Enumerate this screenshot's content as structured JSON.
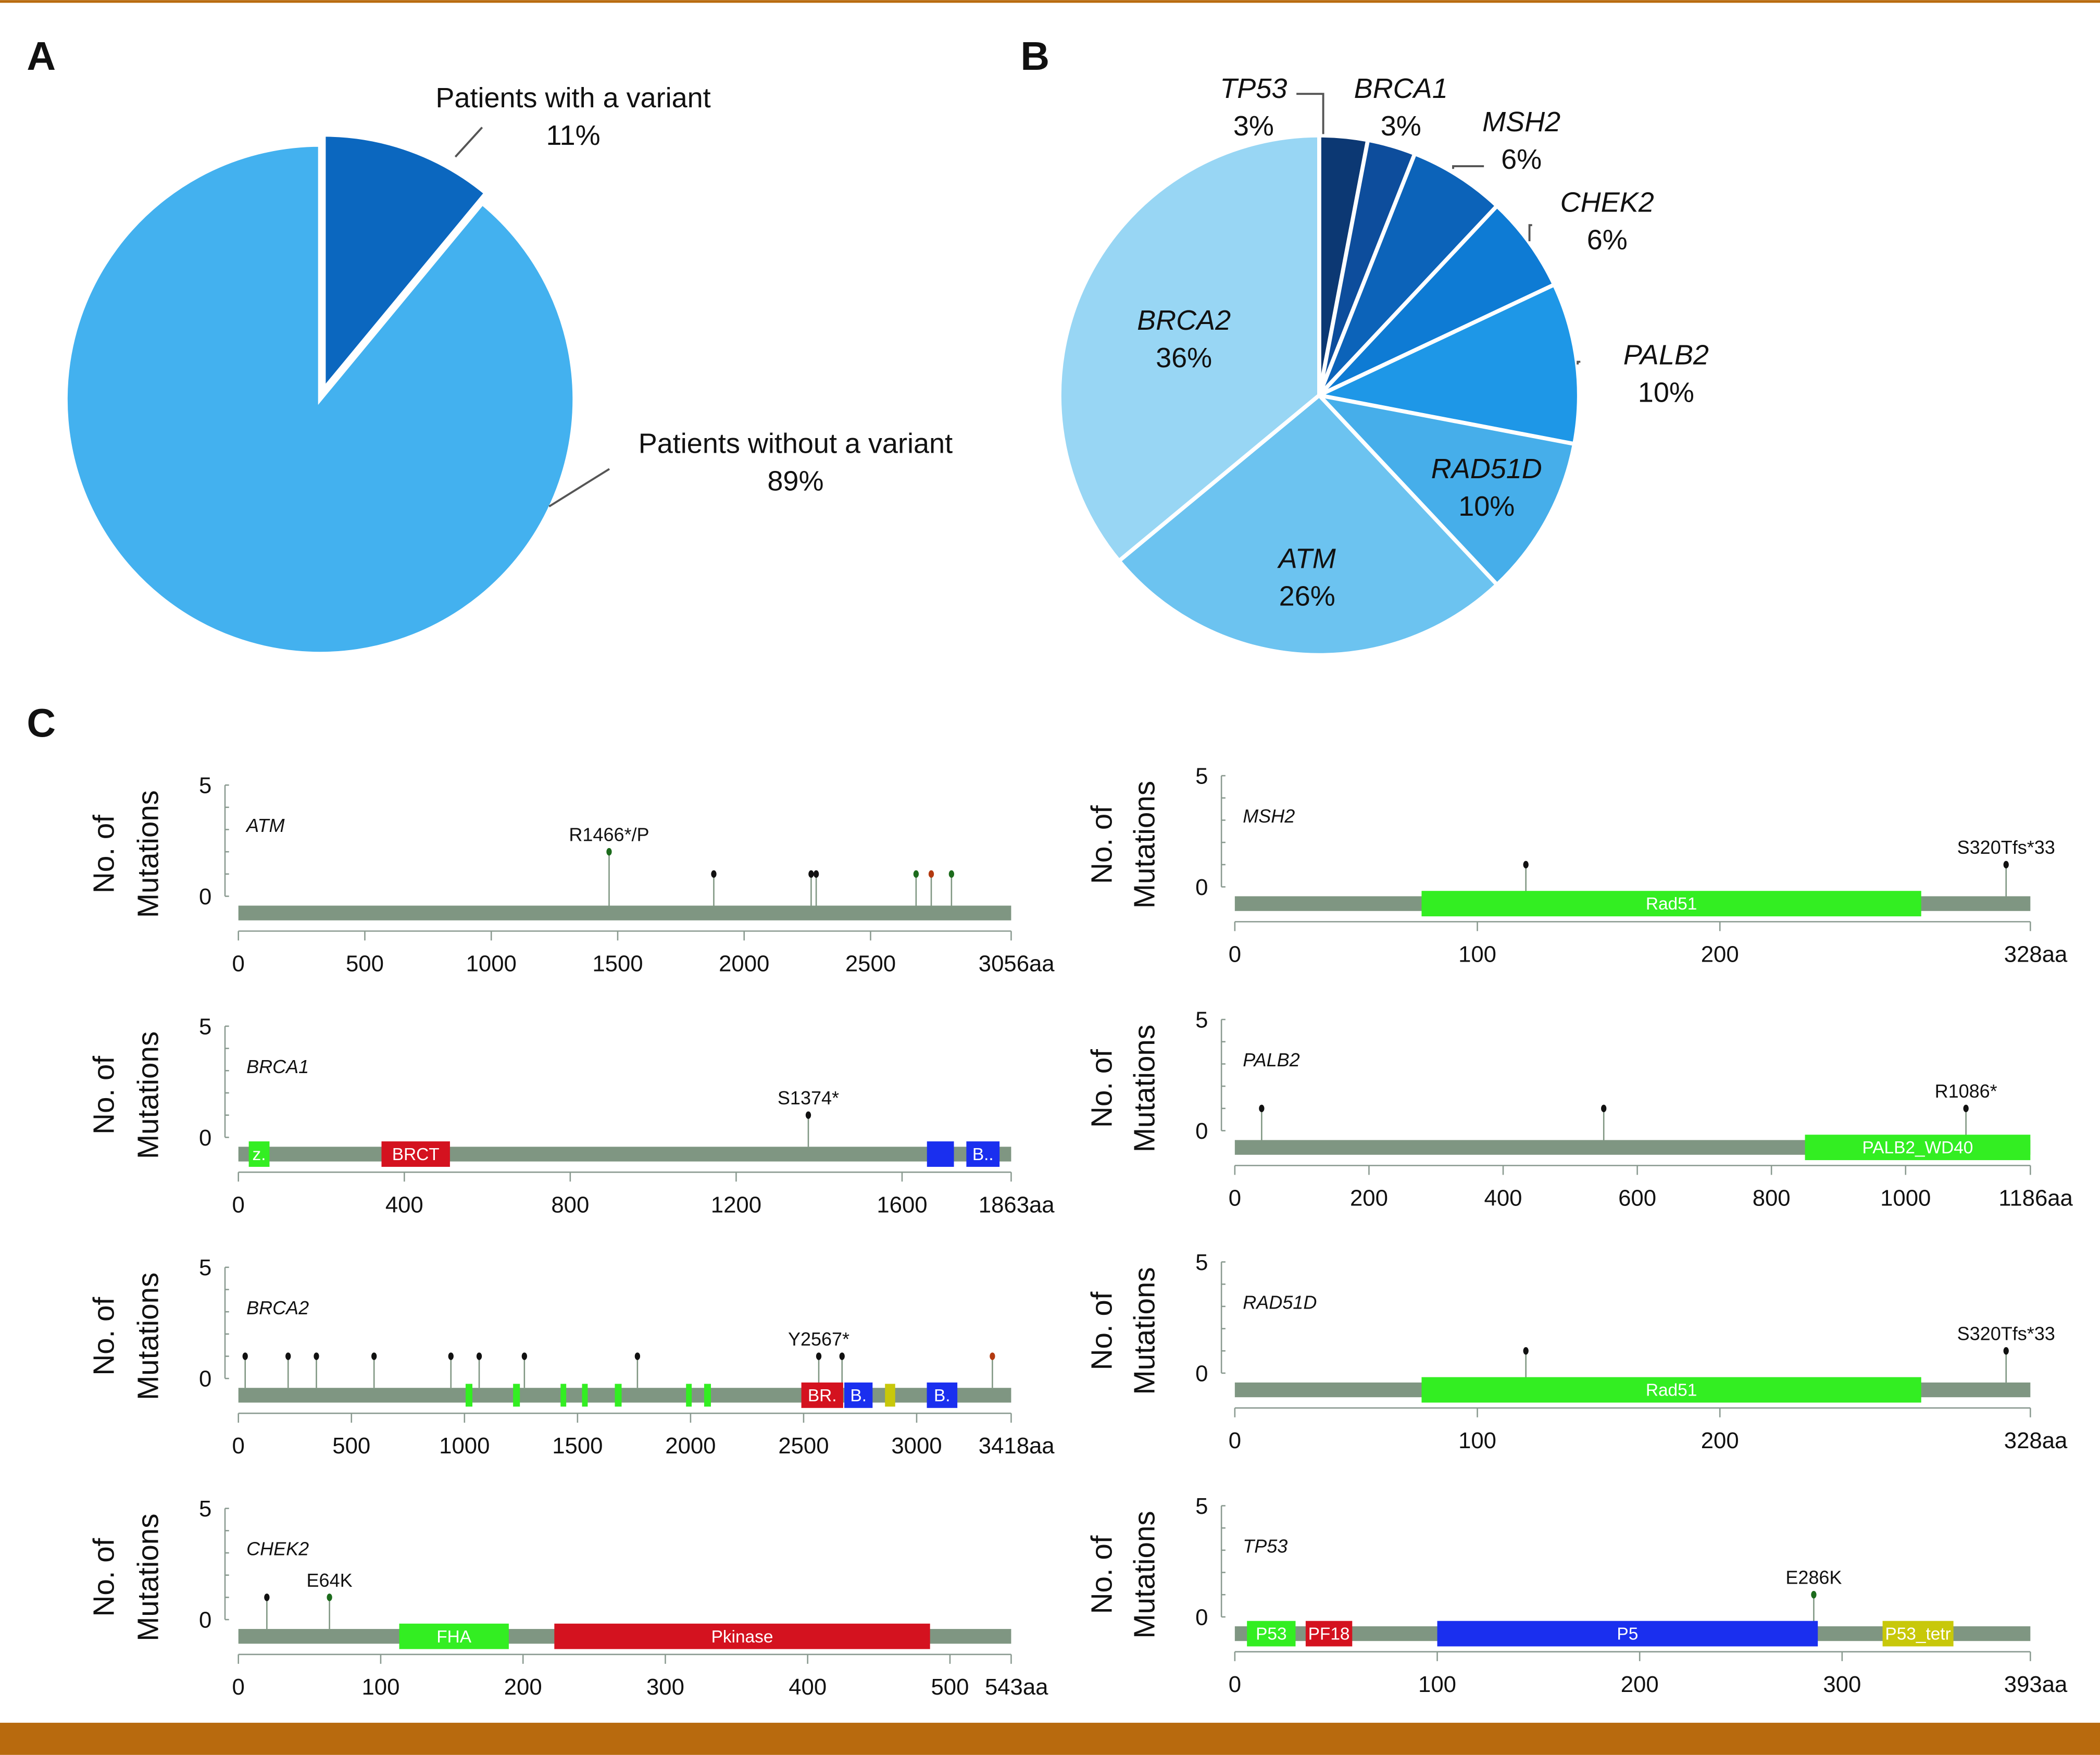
{
  "colors": {
    "frame": "#b86a0e",
    "backbone": "#7f9682",
    "stem": "#7f9682"
  },
  "panel_labels": [
    "A",
    "B",
    "C"
  ],
  "chart_data": [
    {
      "type": "pie",
      "panel": "A",
      "slices": [
        {
          "label": "Patients with a variant",
          "pct_label": "11%",
          "value": 11,
          "color": "#0b67bf",
          "exploded": true
        },
        {
          "label": "Patients without a variant",
          "pct_label": "89%",
          "value": 89,
          "color": "#43b1ef"
        }
      ]
    },
    {
      "type": "pie",
      "panel": "B",
      "slices": [
        {
          "label": "TP53",
          "pct_label": "3%",
          "value": 3,
          "color": "#0c3873"
        },
        {
          "label": "BRCA1",
          "pct_label": "3%",
          "value": 3,
          "color": "#0d4d9c"
        },
        {
          "label": "MSH2",
          "pct_label": "6%",
          "value": 6,
          "color": "#0c63b9"
        },
        {
          "label": "CHEK2",
          "pct_label": "6%",
          "value": 6,
          "color": "#0e7bd4"
        },
        {
          "label": "PALB2",
          "pct_label": "10%",
          "value": 10,
          "color": "#1e97e7"
        },
        {
          "label": "RAD51D",
          "pct_label": "10%",
          "value": 10,
          "color": "#46aeea"
        },
        {
          "label": "ATM",
          "pct_label": "26%",
          "value": 26,
          "color": "#6cc3f0"
        },
        {
          "label": "BRCA2",
          "pct_label": "36%",
          "value": 36,
          "color": "#98d6f4"
        }
      ]
    },
    {
      "type": "lollipop",
      "panel": "C",
      "ylabel": [
        "No. of",
        "Mutations"
      ],
      "ylim": [
        0,
        5
      ],
      "y_ticks": [
        "5",
        "0"
      ],
      "genes": [
        {
          "gene": "ATM",
          "length": 3056,
          "length_label": "3056aa",
          "ticks": [
            0,
            500,
            1000,
            1500,
            2000,
            2500
          ],
          "domains": [],
          "mutations": [
            {
              "pos": 1466,
              "count": 2,
              "color": "#1c6b1c",
              "label": "R1466*/P"
            },
            {
              "pos": 1880,
              "count": 1,
              "color": "#111"
            },
            {
              "pos": 2265,
              "count": 1,
              "color": "#111"
            },
            {
              "pos": 2285,
              "count": 1,
              "color": "#111"
            },
            {
              "pos": 2680,
              "count": 1,
              "color": "#1c6b1c"
            },
            {
              "pos": 2740,
              "count": 1,
              "color": "#b33a10"
            },
            {
              "pos": 2820,
              "count": 1,
              "color": "#1c6b1c"
            }
          ]
        },
        {
          "gene": "MSH2",
          "length": 328,
          "length_label": "328aa",
          "ticks": [
            0,
            100,
            200
          ],
          "domains": [
            {
              "name": "Rad51",
              "start": 77,
              "end": 283,
              "color": "#33ee22"
            }
          ],
          "mutations": [
            {
              "pos": 120,
              "count": 1,
              "color": "#111"
            },
            {
              "pos": 318,
              "count": 1,
              "color": "#111",
              "label": "S320Tfs*33"
            }
          ]
        },
        {
          "gene": "BRCA1",
          "length": 1863,
          "length_label": "1863aa",
          "ticks": [
            0,
            400,
            800,
            1200,
            1600
          ],
          "domains": [
            {
              "name": "z.",
              "start": 25,
              "end": 75,
              "color": "#33ee22"
            },
            {
              "name": "BRCT",
              "start": 345,
              "end": 510,
              "color": "#d4121f"
            },
            {
              "name": "",
              "start": 1660,
              "end": 1725,
              "color": "#1a2fef"
            },
            {
              "name": "B..",
              "start": 1755,
              "end": 1835,
              "color": "#1a2fef"
            }
          ],
          "mutations": [
            {
              "pos": 1374,
              "count": 1,
              "color": "#111",
              "label": "S1374*"
            }
          ]
        },
        {
          "gene": "PALB2",
          "length": 1186,
          "length_label": "1186aa",
          "ticks": [
            0,
            200,
            400,
            600,
            800,
            1000
          ],
          "domains": [
            {
              "name": "PALB2_WD40",
              "start": 850,
              "end": 1186,
              "color": "#33ee22"
            }
          ],
          "mutations": [
            {
              "pos": 40,
              "count": 1,
              "color": "#111"
            },
            {
              "pos": 550,
              "count": 1,
              "color": "#111"
            },
            {
              "pos": 1090,
              "count": 1,
              "color": "#111",
              "label": "R1086*"
            }
          ]
        },
        {
          "gene": "BRCA2",
          "length": 3418,
          "length_label": "3418aa",
          "ticks": [
            0,
            500,
            1000,
            1500,
            2000,
            2500,
            3000
          ],
          "domains": [
            {
              "name": "",
              "start": 1005,
              "end": 1035,
              "color": "#33ee22",
              "thin": true
            },
            {
              "name": "",
              "start": 1215,
              "end": 1245,
              "color": "#33ee22",
              "thin": true
            },
            {
              "name": "",
              "start": 1425,
              "end": 1450,
              "color": "#33ee22",
              "thin": true
            },
            {
              "name": "",
              "start": 1520,
              "end": 1545,
              "color": "#33ee22",
              "thin": true
            },
            {
              "name": "",
              "start": 1665,
              "end": 1695,
              "color": "#33ee22",
              "thin": true
            },
            {
              "name": "",
              "start": 1980,
              "end": 2005,
              "color": "#33ee22",
              "thin": true
            },
            {
              "name": "",
              "start": 2060,
              "end": 2090,
              "color": "#33ee22",
              "thin": true
            },
            {
              "name": "BR.",
              "start": 2490,
              "end": 2675,
              "color": "#d4121f"
            },
            {
              "name": "B.",
              "start": 2680,
              "end": 2805,
              "color": "#1a2fef"
            },
            {
              "name": "",
              "start": 2860,
              "end": 2905,
              "color": "#c8c80a",
              "thin": true
            },
            {
              "name": "B.",
              "start": 3045,
              "end": 3180,
              "color": "#1a2fef"
            }
          ],
          "mutations": [
            {
              "pos": 30,
              "count": 1,
              "color": "#111"
            },
            {
              "pos": 220,
              "count": 1,
              "color": "#111"
            },
            {
              "pos": 345,
              "count": 1,
              "color": "#111"
            },
            {
              "pos": 600,
              "count": 1,
              "color": "#111"
            },
            {
              "pos": 940,
              "count": 1,
              "color": "#111"
            },
            {
              "pos": 1065,
              "count": 1,
              "color": "#111"
            },
            {
              "pos": 1265,
              "count": 1,
              "color": "#111"
            },
            {
              "pos": 1765,
              "count": 1,
              "color": "#111"
            },
            {
              "pos": 2567,
              "count": 1,
              "color": "#111",
              "label": "Y2567*"
            },
            {
              "pos": 2670,
              "count": 1,
              "color": "#111"
            },
            {
              "pos": 3335,
              "count": 1,
              "color": "#b33a10"
            }
          ]
        },
        {
          "gene": "RAD51D",
          "length": 328,
          "length_label": "328aa",
          "ticks": [
            0,
            100,
            200
          ],
          "domains": [
            {
              "name": "Rad51",
              "start": 77,
              "end": 283,
              "color": "#33ee22"
            }
          ],
          "mutations": [
            {
              "pos": 120,
              "count": 1,
              "color": "#111"
            },
            {
              "pos": 318,
              "count": 1,
              "color": "#111",
              "label": "S320Tfs*33"
            }
          ]
        },
        {
          "gene": "CHEK2",
          "length": 543,
          "length_label": "543aa",
          "ticks": [
            0,
            100,
            200,
            300,
            400,
            500
          ],
          "domains": [
            {
              "name": "FHA",
              "start": 113,
              "end": 190,
              "color": "#33ee22"
            },
            {
              "name": "Pkinase",
              "start": 222,
              "end": 486,
              "color": "#d4121f"
            }
          ],
          "mutations": [
            {
              "pos": 20,
              "count": 1,
              "color": "#111"
            },
            {
              "pos": 64,
              "count": 1,
              "color": "#1c6b1c",
              "label": "E64K"
            }
          ]
        },
        {
          "gene": "TP53",
          "length": 393,
          "length_label": "393aa",
          "ticks": [
            0,
            100,
            200,
            300
          ],
          "domains": [
            {
              "name": "P53",
              "start": 6,
              "end": 30,
              "color": "#33ee22"
            },
            {
              "name": "PF18",
              "start": 35,
              "end": 58,
              "color": "#d4121f"
            },
            {
              "name": "P5",
              "start": 100,
              "end": 288,
              "color": "#1a2fef"
            },
            {
              "name": "P53_tetr",
              "start": 320,
              "end": 355,
              "color": "#c8c80a"
            }
          ],
          "mutations": [
            {
              "pos": 286,
              "count": 1,
              "color": "#1c6b1c",
              "label": "E286K"
            }
          ]
        }
      ]
    }
  ]
}
